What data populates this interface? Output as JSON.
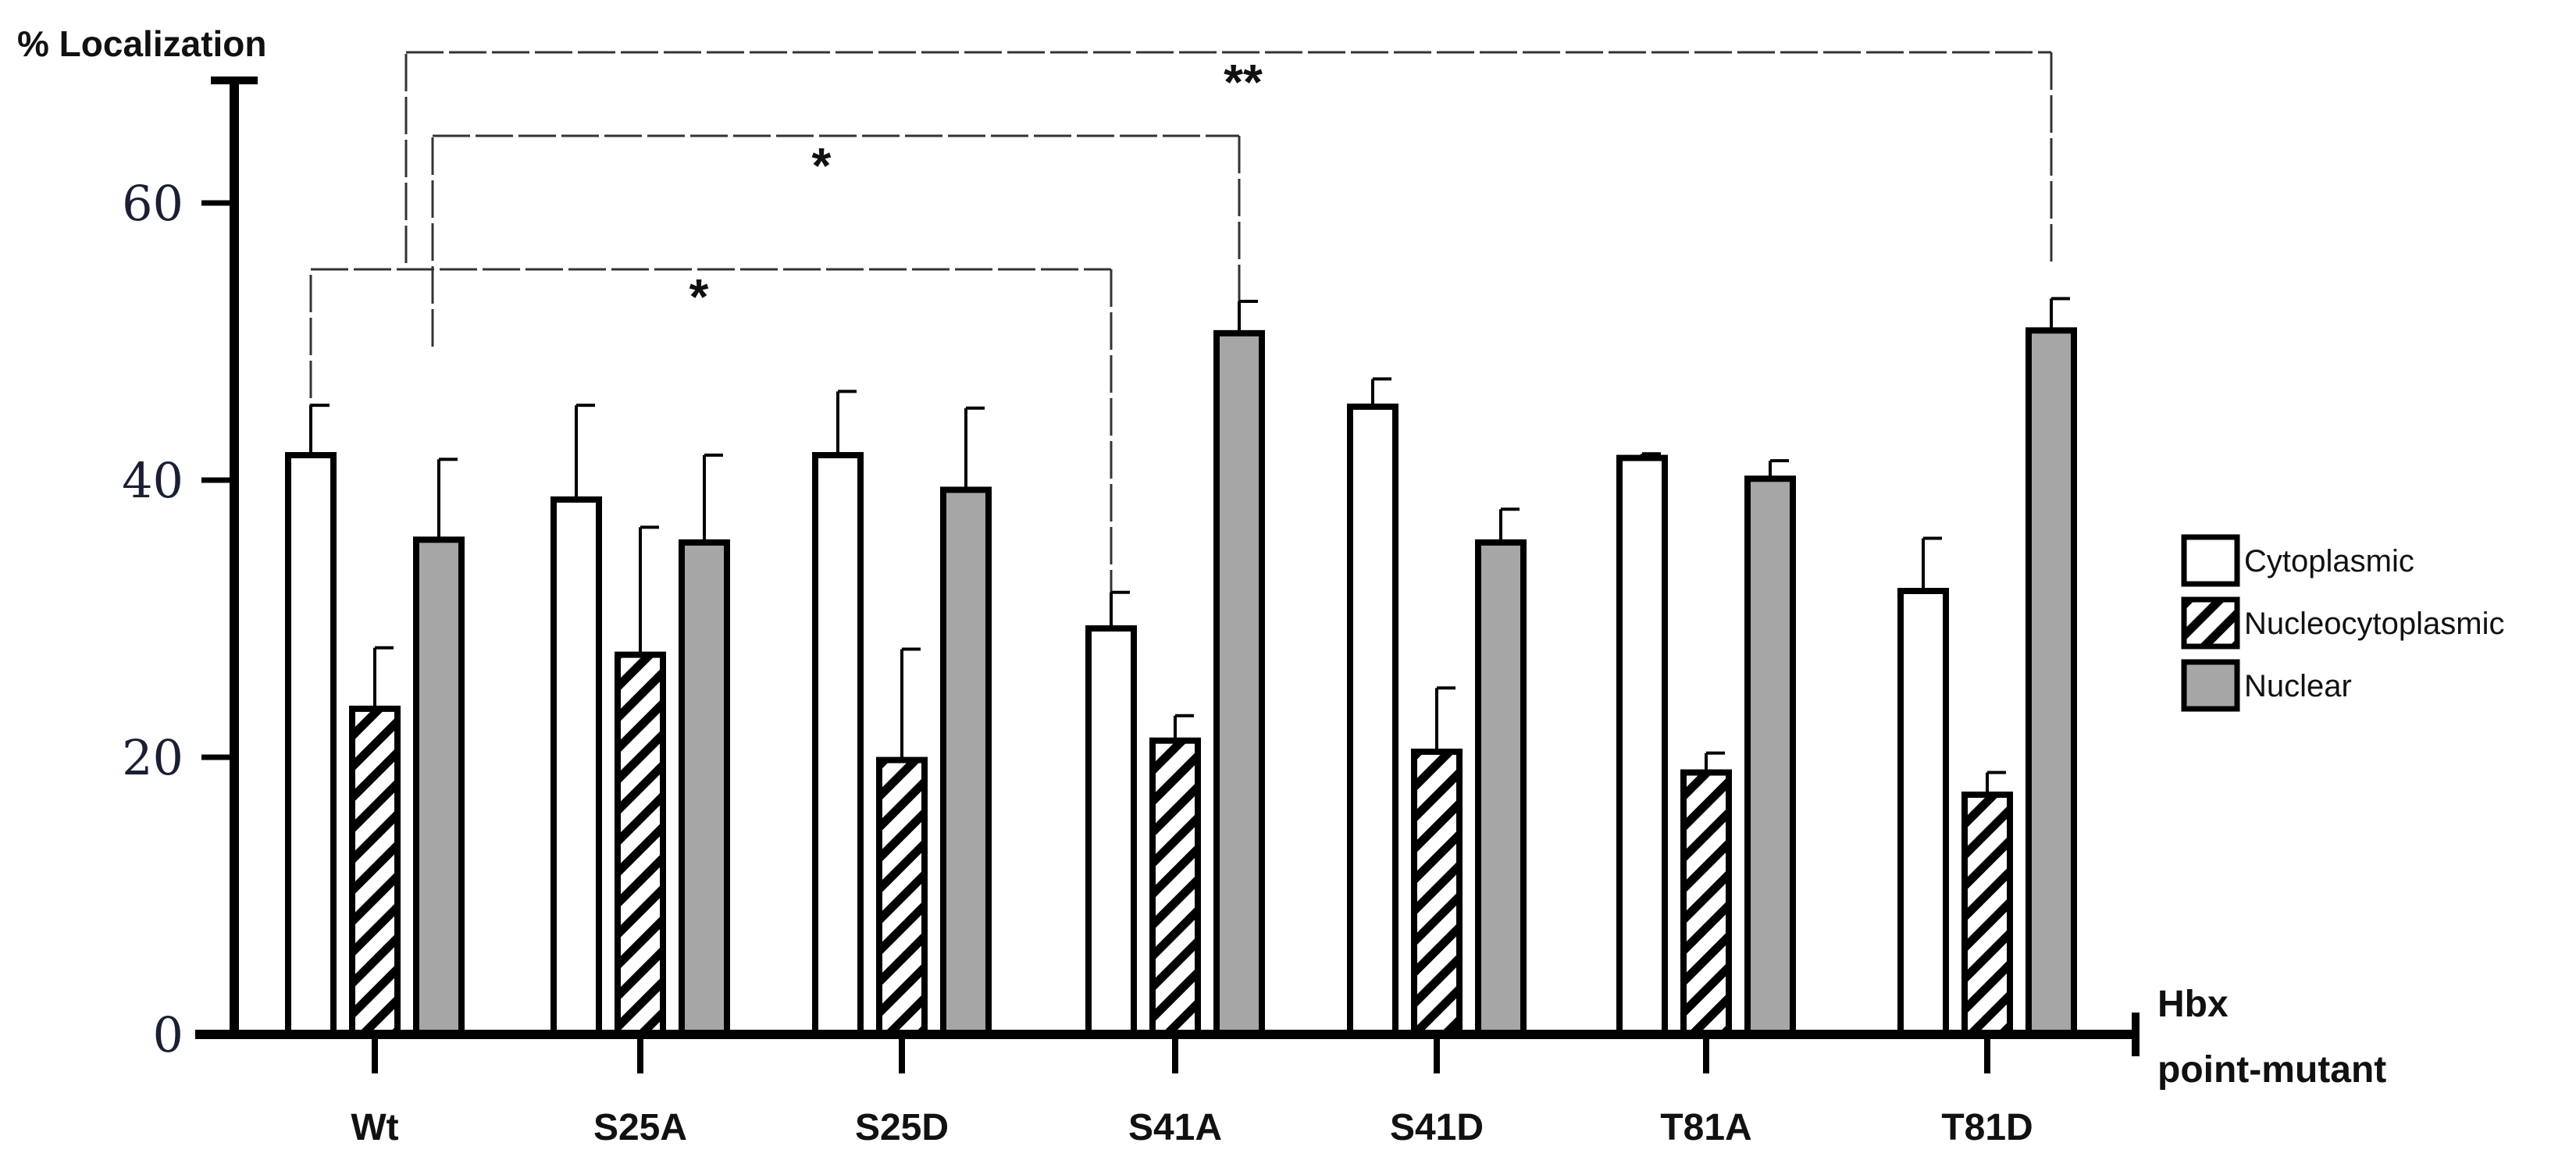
{
  "chart_data": {
    "type": "bar",
    "title": "",
    "ylabel": "% Localization",
    "xlabel_lines": [
      "Hbx",
      "point-mutant"
    ],
    "ylim": [
      0,
      70
    ],
    "yticks": [
      0,
      20,
      40,
      60
    ],
    "categories": [
      "Wt",
      "S25A",
      "S25D",
      "S41A",
      "S41D",
      "T81A",
      "T81D"
    ],
    "series": [
      {
        "name": "Cytoplasmic",
        "pattern": "open",
        "values": [
          41.8,
          38.6,
          41.8,
          29.3,
          45.3,
          41.6,
          32.0
        ],
        "errors": [
          3.6,
          6.8,
          4.6,
          2.6,
          2.0,
          0.3,
          3.8
        ]
      },
      {
        "name": "Nucleocytoplasmic",
        "pattern": "hatched",
        "values": [
          23.5,
          27.4,
          19.8,
          21.2,
          20.4,
          18.9,
          17.3
        ],
        "errors": [
          4.4,
          9.2,
          8.0,
          1.8,
          4.6,
          1.4,
          1.6
        ]
      },
      {
        "name": "Nuclear",
        "pattern": "gray",
        "values": [
          35.7,
          35.5,
          39.3,
          50.6,
          35.5,
          40.1,
          50.8
        ],
        "errors": [
          5.8,
          6.3,
          5.9,
          2.3,
          2.4,
          1.3,
          2.3
        ]
      }
    ],
    "legend_position": "right",
    "significance": [
      {
        "label": "*",
        "from_category": 0,
        "from_series": 0,
        "to_category": 3,
        "to_series": 0
      },
      {
        "label": "*",
        "from_category": 0,
        "from_series": 2,
        "to_category": 3,
        "to_series": 2
      },
      {
        "label": "**",
        "from_category": 0,
        "from_series": 2,
        "to_category": 6,
        "to_series": 2
      }
    ],
    "colors": {
      "axis": "#000000",
      "cytoplasmic": "#ffffff",
      "nuclear": "#a6a6a6",
      "bracket": "#333333"
    }
  }
}
